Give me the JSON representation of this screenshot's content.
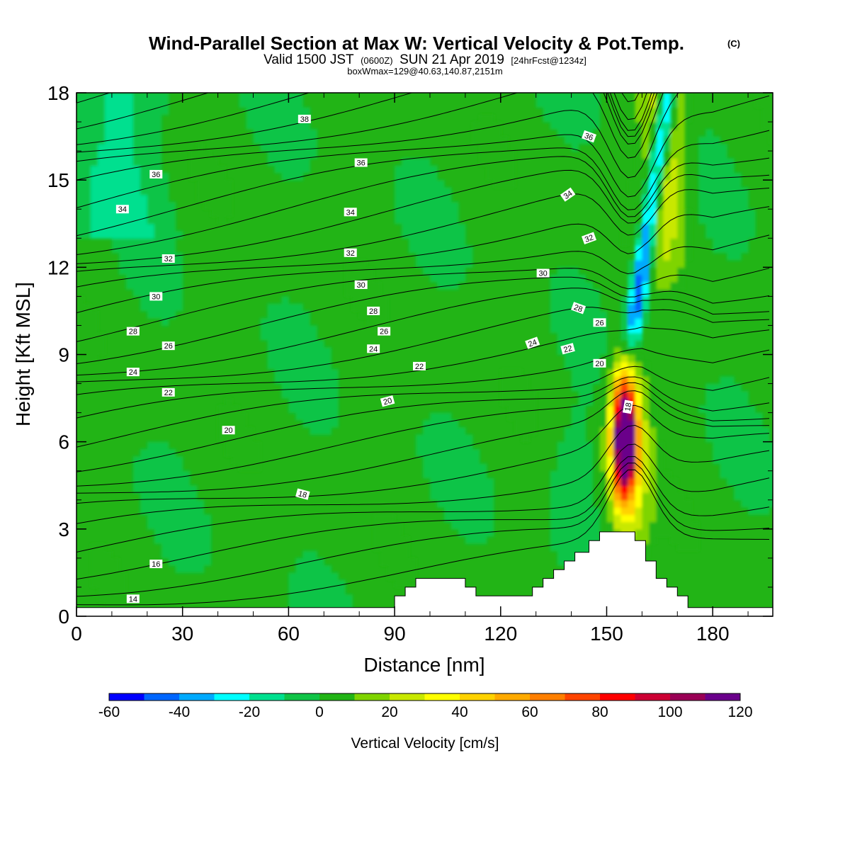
{
  "title": {
    "main": "Wind-Parallel Section at Max W: Vertical Velocity & Pot.Temp.",
    "copyright": "(C)",
    "line2_a": "Valid 1500 JST",
    "line2_b": "(0600Z)",
    "line2_c": "SUN 21 Apr 2019",
    "line2_d": "[24hrFcst@1234z]",
    "line3": "boxWmax=129@40.63,140.87,2151m"
  },
  "chart_data": {
    "type": "heatmap",
    "xlabel": "Distance [nm]",
    "ylabel": "Height [Kft MSL]",
    "xlim": [
      0,
      197
    ],
    "ylim": [
      0,
      18
    ],
    "x_ticks": [
      0,
      30,
      60,
      90,
      120,
      150,
      180
    ],
    "y_ticks": [
      0,
      3,
      6,
      9,
      12,
      15,
      18
    ],
    "colorbar": {
      "title": "Vertical Velocity [cm/s]",
      "levels": [
        -60,
        -50,
        -40,
        -30,
        -20,
        -10,
        0,
        10,
        20,
        30,
        40,
        50,
        60,
        70,
        80,
        90,
        100,
        110,
        120
      ],
      "tick_labels": [
        "-60",
        "-40",
        "-20",
        "0",
        "20",
        "40",
        "60",
        "80",
        "100",
        "120"
      ],
      "colors": [
        "#0000ff",
        "#0066ff",
        "#00aaff",
        "#00ffff",
        "#00e08f",
        "#10c447",
        "#22b416",
        "#7fd400",
        "#c8e800",
        "#ffff00",
        "#ffd200",
        "#ffaa00",
        "#ff7f00",
        "#ff4400",
        "#ff0000",
        "#cc0033",
        "#990055",
        "#6a008a"
      ]
    },
    "max_w": {
      "value_cm_s": 129,
      "x_nm": 155,
      "height_kft": 6.2
    },
    "terrain_kft": [
      [
        0,
        0.3
      ],
      [
        90,
        0.3
      ],
      [
        90,
        0.7
      ],
      [
        93,
        0.7
      ],
      [
        93,
        1.0
      ],
      [
        96,
        1.0
      ],
      [
        96,
        1.3
      ],
      [
        110,
        1.3
      ],
      [
        110,
        1.0
      ],
      [
        113,
        1.0
      ],
      [
        113,
        0.7
      ],
      [
        129,
        0.7
      ],
      [
        129,
        1.0
      ],
      [
        132,
        1.0
      ],
      [
        132,
        1.3
      ],
      [
        135,
        1.3
      ],
      [
        135,
        1.6
      ],
      [
        138,
        1.6
      ],
      [
        138,
        1.9
      ],
      [
        141,
        1.9
      ],
      [
        141,
        2.2
      ],
      [
        145,
        2.2
      ],
      [
        145,
        2.6
      ],
      [
        148,
        2.6
      ],
      [
        148,
        2.9
      ],
      [
        158,
        2.9
      ],
      [
        158,
        2.6
      ],
      [
        161,
        2.6
      ],
      [
        161,
        1.9
      ],
      [
        164,
        1.9
      ],
      [
        164,
        1.3
      ],
      [
        167,
        1.3
      ],
      [
        167,
        1.0
      ],
      [
        170,
        1.0
      ],
      [
        170,
        0.7
      ],
      [
        173,
        0.7
      ],
      [
        173,
        0.3
      ],
      [
        197,
        0.3
      ]
    ],
    "theta_contour_labels": [
      {
        "value": "38",
        "x": 64.5,
        "y": 17.1
      },
      {
        "value": "36",
        "x": 22.5,
        "y": 15.2
      },
      {
        "value": "36",
        "x": 80.5,
        "y": 15.6
      },
      {
        "value": "36",
        "x": 145,
        "y": 16.5,
        "rot": 20
      },
      {
        "value": "34",
        "x": 13,
        "y": 14.0
      },
      {
        "value": "34",
        "x": 77.5,
        "y": 13.9
      },
      {
        "value": "34",
        "x": 139,
        "y": 14.5,
        "rot": -35
      },
      {
        "value": "32",
        "x": 26,
        "y": 12.3
      },
      {
        "value": "32",
        "x": 77.5,
        "y": 12.5
      },
      {
        "value": "32",
        "x": 145,
        "y": 13.0,
        "rot": -20
      },
      {
        "value": "30",
        "x": 22.5,
        "y": 11.0
      },
      {
        "value": "30",
        "x": 80.5,
        "y": 11.4
      },
      {
        "value": "30",
        "x": 132,
        "y": 11.8
      },
      {
        "value": "28",
        "x": 16,
        "y": 9.8
      },
      {
        "value": "28",
        "x": 84,
        "y": 10.5
      },
      {
        "value": "28",
        "x": 142,
        "y": 10.6,
        "rot": 20
      },
      {
        "value": "26",
        "x": 26,
        "y": 9.3
      },
      {
        "value": "26",
        "x": 87,
        "y": 9.8
      },
      {
        "value": "26",
        "x": 148,
        "y": 10.1
      },
      {
        "value": "24",
        "x": 16,
        "y": 8.4
      },
      {
        "value": "24",
        "x": 84,
        "y": 9.2
      },
      {
        "value": "24",
        "x": 129,
        "y": 9.4,
        "rot": -20
      },
      {
        "value": "22",
        "x": 26,
        "y": 7.7
      },
      {
        "value": "22",
        "x": 97,
        "y": 8.6
      },
      {
        "value": "22",
        "x": 139,
        "y": 9.2,
        "rot": -15
      },
      {
        "value": "20",
        "x": 43,
        "y": 6.4
      },
      {
        "value": "20",
        "x": 88,
        "y": 7.4,
        "rot": -15
      },
      {
        "value": "20",
        "x": 148,
        "y": 8.7
      },
      {
        "value": "18",
        "x": 64,
        "y": 4.2,
        "rot": 15
      },
      {
        "value": "18",
        "x": 156,
        "y": 7.2,
        "rot": -80
      },
      {
        "value": "16",
        "x": 22.5,
        "y": 1.8
      },
      {
        "value": "14",
        "x": 16,
        "y": 0.6
      }
    ]
  }
}
